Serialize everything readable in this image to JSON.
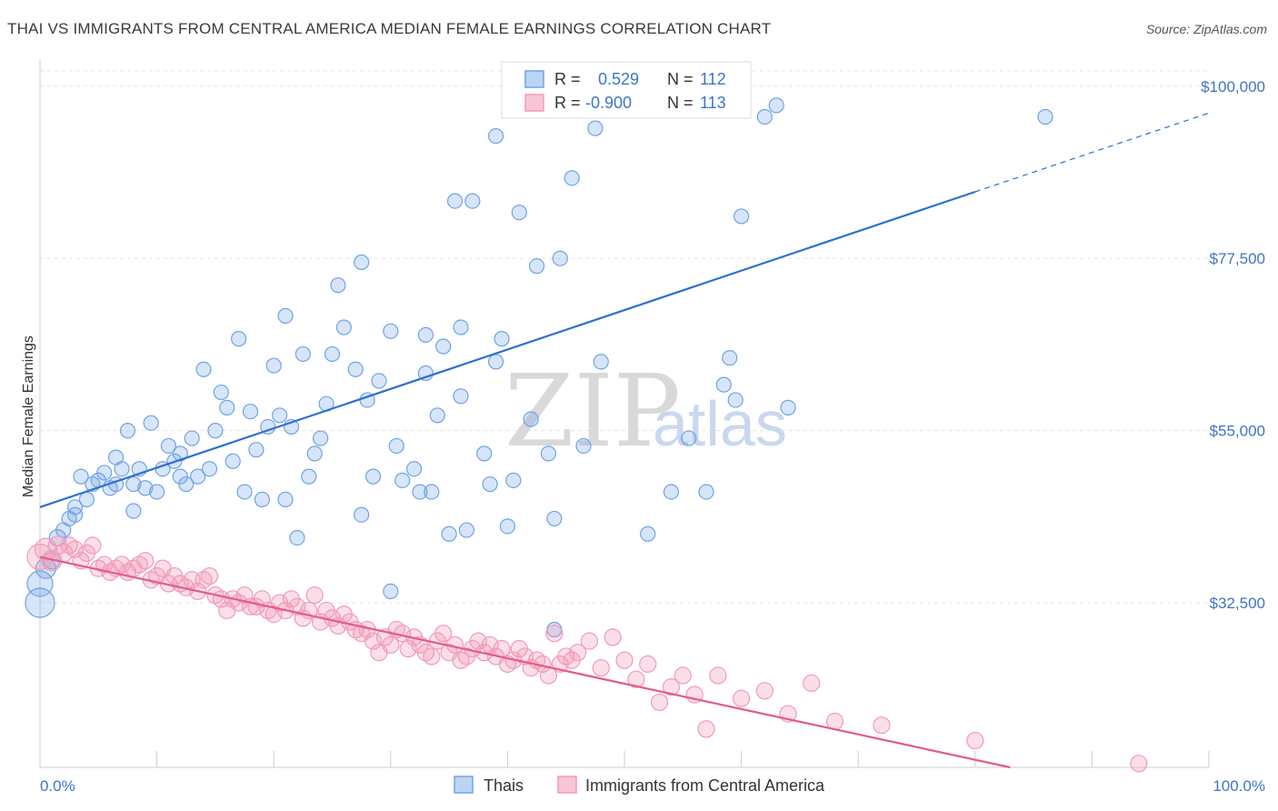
{
  "title": "THAI VS IMMIGRANTS FROM CENTRAL AMERICA MEDIAN FEMALE EARNINGS CORRELATION CHART",
  "source": "Source: ZipAtlas.com",
  "watermark": {
    "zip": "ZIP",
    "atlas": "atlas"
  },
  "legend_top": {
    "rows": [
      {
        "r_label": "R =",
        "r_value": "0.529",
        "n_label": "N =",
        "n_value": "112",
        "color": "#6fa3e6"
      },
      {
        "r_label": "R =",
        "r_value": "-0.900",
        "n_label": "N =",
        "n_value": "113",
        "color": "#f29ab6"
      }
    ]
  },
  "legend_bottom": {
    "items": [
      {
        "label": "Thais",
        "color": "#6fa3e6"
      },
      {
        "label": "Immigrants from Central America",
        "color": "#f29ab6"
      }
    ]
  },
  "chart_data": {
    "type": "scatter",
    "title": "THAI VS IMMIGRANTS FROM CENTRAL AMERICA MEDIAN FEMALE EARNINGS CORRELATION CHART",
    "xlabel": "",
    "ylabel": "Median Female Earnings",
    "x_tick_labels": [
      "0.0%",
      "100.0%"
    ],
    "y_tick_labels": [
      "$32,500",
      "$55,000",
      "$77,500",
      "$100,000"
    ],
    "y_ticks": [
      32500,
      55000,
      77500,
      100000
    ],
    "xlim": [
      0,
      100
    ],
    "ylim": [
      11000,
      102000
    ],
    "grid": true,
    "legend_position": "top-center",
    "series": [
      {
        "name": "Thais",
        "color": "#6fa3e6",
        "trend": {
          "x0": 0,
          "y0": 45000,
          "x1": 80,
          "y1": 86200,
          "dash_to_x": 100,
          "dash_to_y": 96500
        },
        "points": [
          [
            0.0,
            32500,
            16
          ],
          [
            0.0,
            35000,
            14
          ],
          [
            0.5,
            37000,
            11
          ],
          [
            1.0,
            38000,
            9
          ],
          [
            1.5,
            41000,
            9
          ],
          [
            2.0,
            42000,
            8
          ],
          [
            2.5,
            43500,
            8
          ],
          [
            3.0,
            44000,
            8
          ],
          [
            4.0,
            46000,
            8
          ],
          [
            3.5,
            49000,
            8
          ],
          [
            4.5,
            48000,
            8
          ],
          [
            5.0,
            48500,
            8
          ],
          [
            5.5,
            49500,
            8
          ],
          [
            6.0,
            47500,
            8
          ],
          [
            6.5,
            48000,
            8
          ],
          [
            7.0,
            50000,
            8
          ],
          [
            6.5,
            51500,
            8
          ],
          [
            7.5,
            55000,
            8
          ],
          [
            8.0,
            48000,
            8
          ],
          [
            8.5,
            50000,
            8
          ],
          [
            9.0,
            47500,
            8
          ],
          [
            9.5,
            56000,
            8
          ],
          [
            10.0,
            47000,
            8
          ],
          [
            10.5,
            50000,
            8
          ],
          [
            11.0,
            53000,
            8
          ],
          [
            11.5,
            51000,
            8
          ],
          [
            12.0,
            49000,
            8
          ],
          [
            12.5,
            48000,
            8
          ],
          [
            13.0,
            54000,
            8
          ],
          [
            13.5,
            49000,
            8
          ],
          [
            14.0,
            63000,
            8
          ],
          [
            14.5,
            50000,
            8
          ],
          [
            15.0,
            55000,
            8
          ],
          [
            15.5,
            60000,
            8
          ],
          [
            16.0,
            58000,
            8
          ],
          [
            16.5,
            51000,
            8
          ],
          [
            17.0,
            67000,
            8
          ],
          [
            17.5,
            47000,
            8
          ],
          [
            18.0,
            57500,
            8
          ],
          [
            18.5,
            52500,
            8
          ],
          [
            19.0,
            46000,
            8
          ],
          [
            19.5,
            55500,
            8
          ],
          [
            20.0,
            63500,
            8
          ],
          [
            20.5,
            57000,
            8
          ],
          [
            21.0,
            70000,
            8
          ],
          [
            21.5,
            55500,
            8
          ],
          [
            22.0,
            41000,
            8
          ],
          [
            22.5,
            65000,
            8
          ],
          [
            23.0,
            49000,
            8
          ],
          [
            23.5,
            52000,
            8
          ],
          [
            24.0,
            54000,
            8
          ],
          [
            24.5,
            58500,
            8
          ],
          [
            25.0,
            65000,
            8
          ],
          [
            25.5,
            74000,
            8
          ],
          [
            26.0,
            68500,
            8
          ],
          [
            27.0,
            63000,
            8
          ],
          [
            27.5,
            77000,
            8
          ],
          [
            28.0,
            59000,
            8
          ],
          [
            28.5,
            49000,
            8
          ],
          [
            29.0,
            61500,
            8
          ],
          [
            30.0,
            68000,
            8
          ],
          [
            30.5,
            53000,
            8
          ],
          [
            31.0,
            48500,
            8
          ],
          [
            32.0,
            50000,
            8
          ],
          [
            32.5,
            47000,
            8
          ],
          [
            33.0,
            67500,
            8
          ],
          [
            33.5,
            47000,
            8
          ],
          [
            34.0,
            57000,
            8
          ],
          [
            34.5,
            66000,
            8
          ],
          [
            35.0,
            41500,
            8
          ],
          [
            35.5,
            85000,
            8
          ],
          [
            36.0,
            68500,
            8
          ],
          [
            36.5,
            42000,
            8
          ],
          [
            37.0,
            85000,
            8
          ],
          [
            38.0,
            52000,
            8
          ],
          [
            38.5,
            48000,
            8
          ],
          [
            39.0,
            93500,
            8
          ],
          [
            39.0,
            64000,
            8
          ],
          [
            39.5,
            67000,
            8
          ],
          [
            40.0,
            42500,
            8
          ],
          [
            40.5,
            48500,
            8
          ],
          [
            41.0,
            83500,
            8
          ],
          [
            42.0,
            56500,
            8
          ],
          [
            42.5,
            76500,
            8
          ],
          [
            43.5,
            52000,
            8
          ],
          [
            44.0,
            43500,
            8
          ],
          [
            44.5,
            77500,
            8
          ],
          [
            45.5,
            88000,
            8
          ],
          [
            46.5,
            53000,
            8
          ],
          [
            47.5,
            94500,
            8
          ],
          [
            48.0,
            64000,
            8
          ],
          [
            52.0,
            41500,
            8
          ],
          [
            54.0,
            47000,
            8
          ],
          [
            55.5,
            54000,
            8
          ],
          [
            58.5,
            61000,
            8
          ],
          [
            59.0,
            64500,
            8
          ],
          [
            59.5,
            59000,
            8
          ],
          [
            60.0,
            83000,
            8
          ],
          [
            64.0,
            58000,
            8
          ],
          [
            86.0,
            96000,
            8
          ],
          [
            44.0,
            29000,
            8
          ],
          [
            63.0,
            97500,
            8
          ],
          [
            62.0,
            96000,
            8
          ],
          [
            30.0,
            34000,
            8
          ],
          [
            21.0,
            46000,
            8
          ],
          [
            12.0,
            52000,
            8
          ],
          [
            36.0,
            59500,
            8
          ],
          [
            27.5,
            44000,
            8
          ],
          [
            8.0,
            44500,
            8
          ],
          [
            3.0,
            45000,
            8
          ],
          [
            57.0,
            47000,
            8
          ],
          [
            33.0,
            62500,
            8
          ]
        ]
      },
      {
        "name": "Immigrants from Central America",
        "color": "#f29ab6",
        "trend": {
          "x0": 0,
          "y0": 38500,
          "x1": 83,
          "y1": 11000
        },
        "points": [
          [
            0.0,
            38500,
            14
          ],
          [
            0.5,
            39500,
            12
          ],
          [
            1.0,
            38000,
            11
          ],
          [
            1.5,
            40000,
            10
          ],
          [
            2.0,
            39000,
            10
          ],
          [
            2.5,
            40000,
            9
          ],
          [
            3.0,
            39500,
            9
          ],
          [
            3.5,
            38000,
            9
          ],
          [
            4.0,
            39000,
            9
          ],
          [
            4.5,
            40000,
            9
          ],
          [
            5.0,
            37000,
            9
          ],
          [
            5.5,
            37500,
            9
          ],
          [
            6.0,
            36500,
            9
          ],
          [
            6.5,
            37000,
            9
          ],
          [
            7.0,
            37500,
            9
          ],
          [
            7.5,
            36500,
            9
          ],
          [
            8.0,
            37000,
            9
          ],
          [
            8.5,
            37500,
            9
          ],
          [
            9.0,
            38000,
            9
          ],
          [
            9.5,
            35500,
            9
          ],
          [
            10.0,
            36000,
            9
          ],
          [
            10.5,
            37000,
            9
          ],
          [
            11.0,
            35000,
            9
          ],
          [
            11.5,
            36000,
            9
          ],
          [
            12.0,
            35000,
            9
          ],
          [
            12.5,
            34500,
            9
          ],
          [
            13.0,
            35500,
            9
          ],
          [
            13.5,
            34000,
            9
          ],
          [
            14.0,
            35500,
            9
          ],
          [
            14.5,
            36000,
            9
          ],
          [
            15.0,
            33500,
            9
          ],
          [
            15.5,
            33000,
            9
          ],
          [
            16.0,
            31500,
            9
          ],
          [
            16.5,
            33000,
            9
          ],
          [
            17.0,
            32500,
            9
          ],
          [
            17.5,
            33500,
            9
          ],
          [
            18.0,
            32000,
            9
          ],
          [
            18.5,
            32000,
            9
          ],
          [
            19.0,
            33000,
            9
          ],
          [
            19.5,
            31500,
            9
          ],
          [
            20.0,
            31000,
            9
          ],
          [
            20.5,
            32500,
            9
          ],
          [
            21.0,
            31500,
            9
          ],
          [
            21.5,
            33000,
            9
          ],
          [
            22.0,
            32000,
            9
          ],
          [
            22.5,
            30500,
            9
          ],
          [
            23.0,
            31500,
            9
          ],
          [
            23.5,
            33500,
            9
          ],
          [
            24.0,
            30000,
            9
          ],
          [
            24.5,
            31500,
            9
          ],
          [
            25.0,
            30500,
            9
          ],
          [
            25.5,
            29500,
            9
          ],
          [
            26.0,
            31000,
            9
          ],
          [
            26.5,
            30000,
            9
          ],
          [
            27.0,
            29000,
            9
          ],
          [
            27.5,
            28500,
            9
          ],
          [
            28.0,
            29000,
            9
          ],
          [
            28.5,
            27500,
            9
          ],
          [
            29.0,
            26000,
            9
          ],
          [
            29.5,
            28000,
            9
          ],
          [
            30.0,
            27000,
            9
          ],
          [
            30.5,
            29000,
            9
          ],
          [
            31.0,
            28500,
            9
          ],
          [
            31.5,
            26500,
            9
          ],
          [
            32.0,
            28000,
            9
          ],
          [
            32.5,
            27000,
            9
          ],
          [
            33.0,
            26000,
            9
          ],
          [
            33.5,
            25500,
            9
          ],
          [
            34.0,
            27500,
            9
          ],
          [
            34.5,
            28500,
            9
          ],
          [
            35.0,
            26000,
            9
          ],
          [
            35.5,
            27000,
            9
          ],
          [
            36.0,
            25000,
            9
          ],
          [
            36.5,
            25500,
            9
          ],
          [
            37.0,
            26500,
            9
          ],
          [
            37.5,
            27500,
            9
          ],
          [
            38.0,
            26000,
            9
          ],
          [
            38.5,
            27000,
            9
          ],
          [
            39.0,
            25500,
            9
          ],
          [
            39.5,
            26500,
            9
          ],
          [
            40.0,
            24500,
            9
          ],
          [
            40.5,
            25000,
            9
          ],
          [
            41.0,
            26500,
            9
          ],
          [
            41.5,
            25500,
            9
          ],
          [
            42.0,
            24000,
            9
          ],
          [
            42.5,
            25000,
            9
          ],
          [
            43.0,
            24500,
            9
          ],
          [
            43.5,
            23000,
            9
          ],
          [
            44.0,
            28500,
            9
          ],
          [
            44.5,
            24500,
            9
          ],
          [
            45.0,
            25500,
            9
          ],
          [
            45.5,
            25000,
            9
          ],
          [
            46.0,
            26000,
            9
          ],
          [
            47.0,
            27500,
            9
          ],
          [
            48.0,
            24000,
            9
          ],
          [
            49.0,
            28000,
            9
          ],
          [
            50.0,
            25000,
            9
          ],
          [
            51.0,
            22500,
            9
          ],
          [
            52.0,
            24500,
            9
          ],
          [
            53.0,
            19500,
            9
          ],
          [
            54.0,
            21500,
            9
          ],
          [
            55.0,
            23000,
            9
          ],
          [
            56.0,
            20500,
            9
          ],
          [
            57.0,
            16000,
            9
          ],
          [
            58.0,
            23000,
            9
          ],
          [
            60.0,
            20000,
            9
          ],
          [
            62.0,
            21000,
            9
          ],
          [
            64.0,
            18000,
            9
          ],
          [
            66.0,
            22000,
            9
          ],
          [
            68.0,
            17000,
            9
          ],
          [
            72.0,
            16500,
            9
          ],
          [
            80.0,
            14500,
            9
          ],
          [
            94.0,
            11500,
            9
          ]
        ]
      }
    ]
  }
}
